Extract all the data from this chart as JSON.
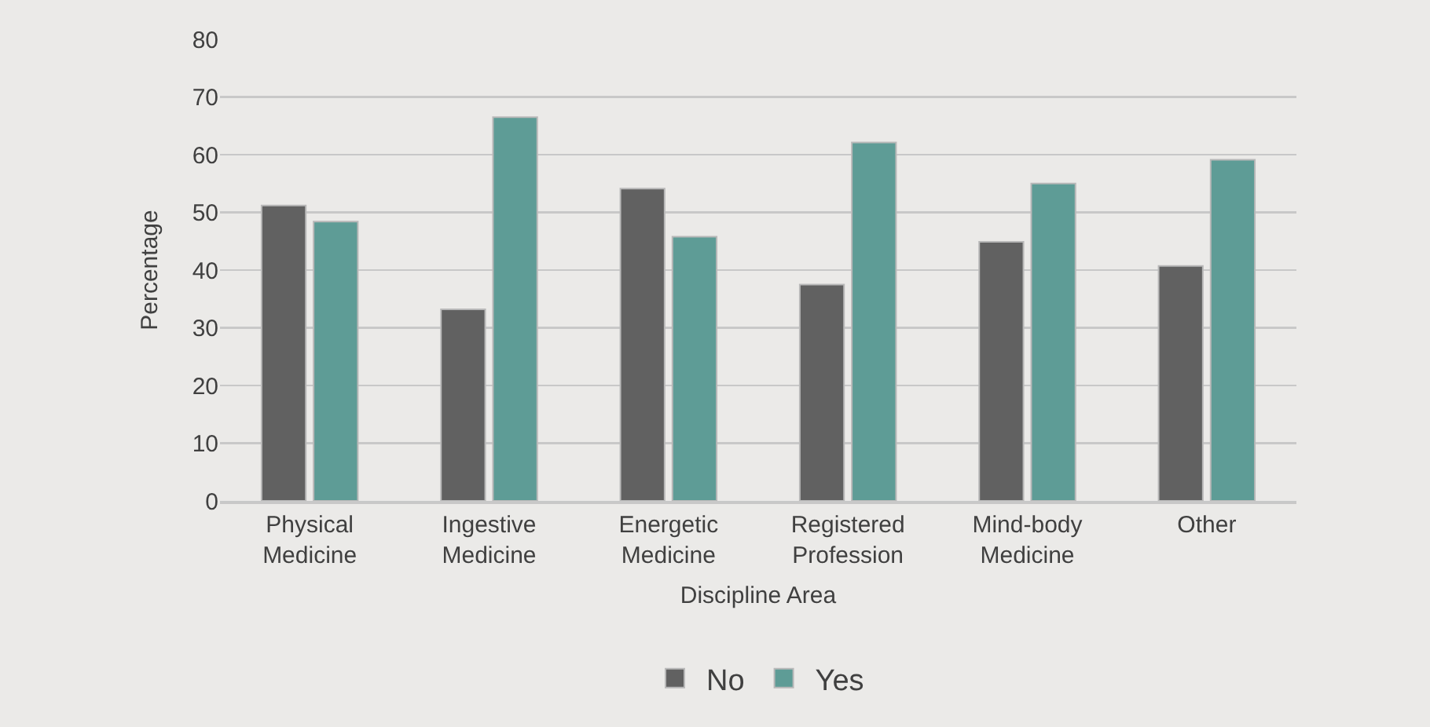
{
  "chart_data": {
    "type": "bar",
    "xlabel": "Discipline Area",
    "ylabel": "Percentage",
    "categories": [
      "Physical Medicine",
      "Ingestive Medicine",
      "Energetic Medicine",
      "Registered Profession",
      "Mind-body Medicine",
      "Other"
    ],
    "series": [
      {
        "name": "No",
        "color": "#616161",
        "values": [
          51.2,
          33.2,
          54.1,
          37.5,
          44.9,
          40.7
        ]
      },
      {
        "name": "Yes",
        "color": "#5e9c96",
        "values": [
          48.4,
          66.5,
          45.8,
          62.1,
          55.0,
          59.1
        ]
      }
    ],
    "ylim": [
      0,
      80
    ],
    "yticks": [
      0,
      10,
      20,
      30,
      40,
      50,
      60,
      70,
      80
    ],
    "grid": "y",
    "legend": "bottom"
  }
}
